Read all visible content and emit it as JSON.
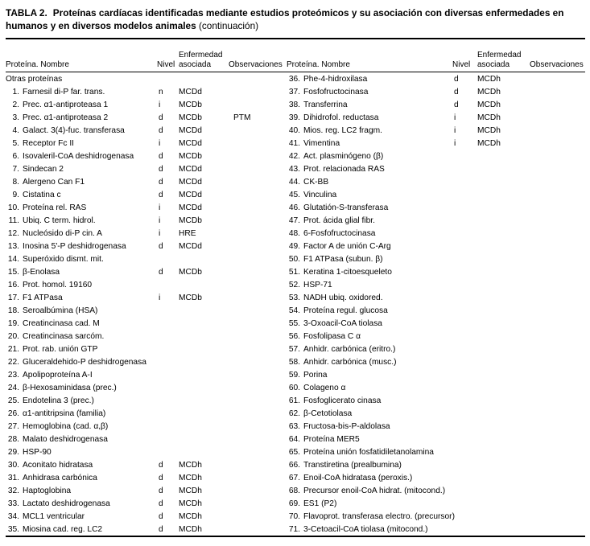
{
  "table": {
    "label": "TABLA 2.",
    "title": "Proteínas cardíacas identificadas mediante estudios proteómicos y su asociación con diversas enfermedades en humanos y en diversos modelos animales",
    "continuation": "(continuación)",
    "headers": {
      "protein": "Proteína. Nombre",
      "level": "Nivel",
      "disease": "Enfermedad asociada",
      "observations": "Observaciones"
    },
    "left_rows": [
      {
        "name": "Otras proteínas",
        "section": true
      },
      {
        "num": "1.",
        "name": "Farnesil di-P far. trans.",
        "level": "n",
        "disease": "MCDd"
      },
      {
        "num": "2.",
        "name": "Prec. α1-antiproteasa 1",
        "level": "i",
        "disease": "MCDb"
      },
      {
        "num": "3.",
        "name": "Prec. α1-antiproteasa 2",
        "level": "d",
        "disease": "MCDb",
        "obs": "PTM"
      },
      {
        "num": "4.",
        "name": "Galact. 3(4)-fuc. transferasa",
        "level": "d",
        "disease": "MCDd"
      },
      {
        "num": "5.",
        "name": "Receptor Fc II",
        "level": "i",
        "disease": "MCDd"
      },
      {
        "num": "6.",
        "name": "Isovaleril-CoA deshidrogenasa",
        "level": "d",
        "disease": "MCDb"
      },
      {
        "num": "7.",
        "name": "Sindecan 2",
        "level": "d",
        "disease": "MCDd"
      },
      {
        "num": "8.",
        "name": "Alergeno Can F1",
        "level": "d",
        "disease": "MCDd"
      },
      {
        "num": "9.",
        "name": "Cistatina c",
        "level": "d",
        "disease": "MCDd"
      },
      {
        "num": "10.",
        "name": "Proteína rel. RAS",
        "level": "i",
        "disease": "MCDd"
      },
      {
        "num": "11.",
        "name": "Ubiq. C term. hidrol.",
        "level": "i",
        "disease": "MCDb"
      },
      {
        "num": "12.",
        "name": "Nucleósido di-P cin. A",
        "level": "i",
        "disease": "HRE"
      },
      {
        "num": "13.",
        "name": "Inosina 5'-P deshidrogenasa",
        "level": "d",
        "disease": "MCDd"
      },
      {
        "num": "14.",
        "name": "Superóxido dismt. mit."
      },
      {
        "num": "15.",
        "name": "β-Enolasa",
        "level": "d",
        "disease": "MCDb"
      },
      {
        "num": "16.",
        "name": "Prot. homol. 19160"
      },
      {
        "num": "17.",
        "name": "F1 ATPasa",
        "level": "i",
        "disease": "MCDb"
      },
      {
        "num": "18.",
        "name": "Seroalbúmina (HSA)"
      },
      {
        "num": "19.",
        "name": "Creatincinasa cad. M"
      },
      {
        "num": "20.",
        "name": "Creatincinasa sarcóm."
      },
      {
        "num": "21.",
        "name": "Prot. rab. unión GTP"
      },
      {
        "num": "22.",
        "name": "Gluceraldehido-P deshidrogenasa"
      },
      {
        "num": "23.",
        "name": "Apolipoproteína A-I"
      },
      {
        "num": "24.",
        "name": "β-Hexosaminidasa (prec.)"
      },
      {
        "num": "25.",
        "name": "Endotelina 3 (prec.)"
      },
      {
        "num": "26.",
        "name": "α1-antitripsina (familia)"
      },
      {
        "num": "27.",
        "name": "Hemoglobina (cad. α,β)"
      },
      {
        "num": "28.",
        "name": "Malato deshidrogenasa"
      },
      {
        "num": "29.",
        "name": "HSP-90"
      },
      {
        "num": "30.",
        "name": "Aconitato hidratasa",
        "level": "d",
        "disease": "MCDh"
      },
      {
        "num": "31.",
        "name": "Anhidrasa carbónica",
        "level": "d",
        "disease": "MCDh"
      },
      {
        "num": "32.",
        "name": "Haptoglobina",
        "level": "d",
        "disease": "MCDh"
      },
      {
        "num": "33.",
        "name": "Lactato deshidrogenasa",
        "level": "d",
        "disease": "MCDh"
      },
      {
        "num": "34.",
        "name": "MCL1 ventricular",
        "level": "d",
        "disease": "MCDh"
      },
      {
        "num": "35.",
        "name": "Miosina cad. reg. LC2",
        "level": "d",
        "disease": "MCDh"
      }
    ],
    "right_rows": [
      {
        "num": "36.",
        "name": "Phe-4-hidroxilasa",
        "level": "d",
        "disease": "MCDh"
      },
      {
        "num": "37.",
        "name": "Fosfofructocinasa",
        "level": "d",
        "disease": "MCDh"
      },
      {
        "num": "38.",
        "name": "Transferrina",
        "level": "d",
        "disease": "MCDh"
      },
      {
        "num": "39.",
        "name": "Dihidrofol. reductasa",
        "level": "i",
        "disease": "MCDh"
      },
      {
        "num": "40.",
        "name": "Mios. reg. LC2 fragm.",
        "level": "i",
        "disease": "MCDh"
      },
      {
        "num": "41.",
        "name": "Vimentina",
        "level": "i",
        "disease": "MCDh"
      },
      {
        "num": "42.",
        "name": "Act. plasminógeno (β)"
      },
      {
        "num": "43.",
        "name": "Prot. relacionada RAS"
      },
      {
        "num": "44.",
        "name": "CK-BB"
      },
      {
        "num": "45.",
        "name": "Vinculina"
      },
      {
        "num": "46.",
        "name": "Glutatión-S-transferasa"
      },
      {
        "num": "47.",
        "name": "Prot. ácida glial fibr."
      },
      {
        "num": "48.",
        "name": "6-Fosfofructocinasa"
      },
      {
        "num": "49.",
        "name": "Factor A de unión C-Arg"
      },
      {
        "num": "50.",
        "name": "F1 ATPasa (subun. β)"
      },
      {
        "num": "51.",
        "name": "Keratina 1-citoesqueleto"
      },
      {
        "num": "52.",
        "name": "HSP-71"
      },
      {
        "num": "53.",
        "name": "NADH ubiq. oxidored."
      },
      {
        "num": "54.",
        "name": "Proteína regul. glucosa"
      },
      {
        "num": "55.",
        "name": "3-Oxoacil-CoA tiolasa"
      },
      {
        "num": "56.",
        "name": "Fosfolipasa C α"
      },
      {
        "num": "57.",
        "name": "Anhidr. carbónica (eritro.)"
      },
      {
        "num": "58.",
        "name": "Anhidr. carbónica (musc.)"
      },
      {
        "num": "59.",
        "name": "Porina"
      },
      {
        "num": "60.",
        "name": "Colageno α"
      },
      {
        "num": "61.",
        "name": "Fosfoglicerato cinasa"
      },
      {
        "num": "62.",
        "name": "β-Cetotiolasa"
      },
      {
        "num": "63.",
        "name": "Fructosa-bis-P-aldolasa"
      },
      {
        "num": "64.",
        "name": "Proteína MER5"
      },
      {
        "num": "65.",
        "name": "Proteína unión fosfatidiletanolamina"
      },
      {
        "num": "66.",
        "name": "Transtiretina (prealbumina)"
      },
      {
        "num": "67.",
        "name": "Enoil-CoA hidratasa (peroxis.)"
      },
      {
        "num": "68.",
        "name": "Precursor enoil-CoA hidrat. (mitocond.)"
      },
      {
        "num": "69.",
        "name": "ES1 (P2)"
      },
      {
        "num": "70.",
        "name": "Flavoprot. transferasa electro. (precursor)"
      },
      {
        "num": "71.",
        "name": "3-Cetoacil-CoA tiolasa (mitocond.)"
      }
    ]
  }
}
